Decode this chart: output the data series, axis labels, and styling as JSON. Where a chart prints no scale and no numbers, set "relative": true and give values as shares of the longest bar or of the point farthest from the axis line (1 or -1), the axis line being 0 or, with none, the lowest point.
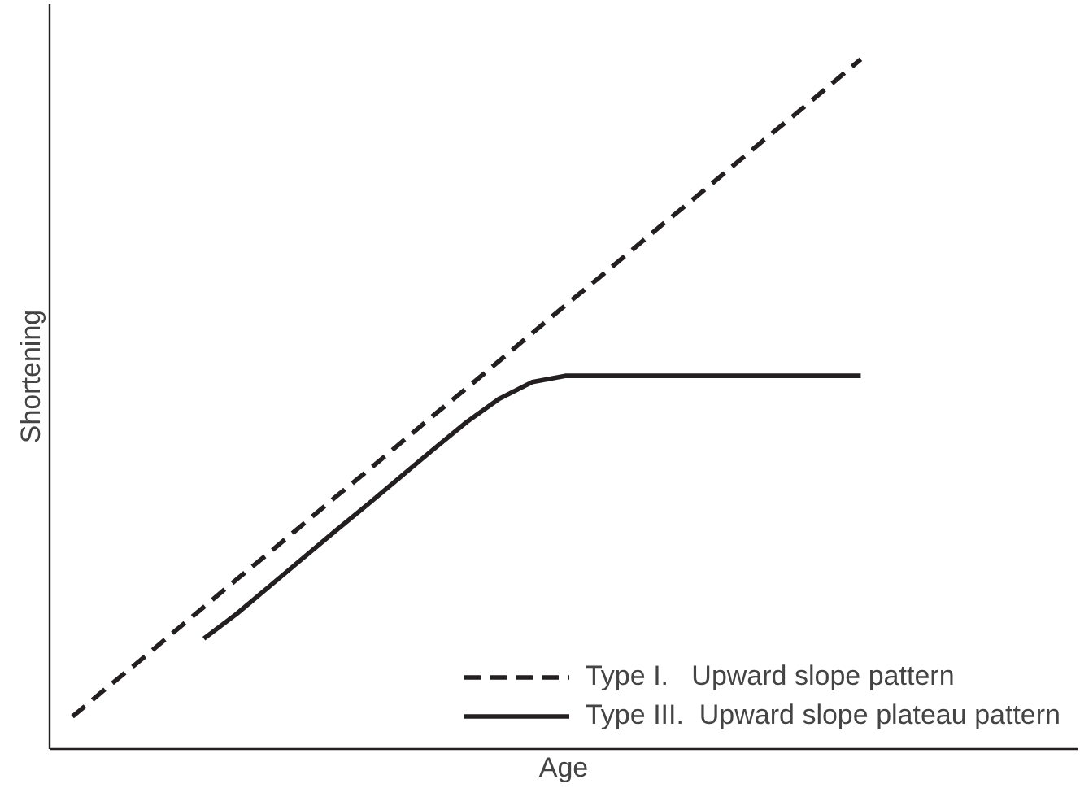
{
  "chart_data": {
    "type": "line",
    "relative": true,
    "xlabel": "Age",
    "ylabel": "Shortening",
    "legend": "bottom right",
    "marker": "none",
    "categories": [
      null,
      null,
      null,
      null,
      null,
      null,
      null,
      null,
      null,
      null,
      null,
      null,
      null,
      null,
      null,
      null,
      null,
      null,
      null,
      null,
      null,
      null,
      null,
      null,
      null
    ],
    "series": [
      {
        "name": "Type I.   Upward slope pattern",
        "color": "#231f20",
        "line_style": "dashed",
        "values": [
          0.047,
          0.087,
          0.126,
          0.166,
          0.206,
          0.246,
          0.285,
          0.325,
          0.365,
          0.404,
          0.444,
          0.484,
          0.523,
          0.563,
          0.603,
          0.643,
          0.682,
          0.722,
          0.762,
          0.801,
          0.841,
          0.881,
          0.92,
          0.96,
          1.0
        ]
      },
      {
        "name": "Type III.  Upward slope plateau pattern",
        "color": "#231f20",
        "line_style": "solid",
        "values": [
          null,
          null,
          null,
          null,
          0.16,
          0.196,
          0.236,
          0.276,
          0.316,
          0.355,
          0.395,
          0.435,
          0.474,
          0.508,
          0.532,
          0.541,
          0.541,
          0.541,
          0.541,
          0.541,
          0.541,
          0.541,
          0.541,
          0.541,
          0.541
        ]
      }
    ]
  }
}
